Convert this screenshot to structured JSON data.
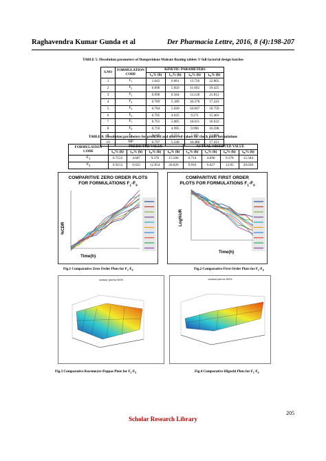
{
  "header": {
    "authors": "Raghavendra Kumar Gunda et al",
    "journal": "Der Pharmacia Lettre, 2016, 8 (4):198-207"
  },
  "table5": {
    "caption": "TABLE 5: Dissolution parameters of Domperidone Maleate floating  tablets 3² full factorial design batches",
    "h_sno": "S.NO",
    "h_code": "FORMULATION CODE",
    "h_kinetic": "KINETIC PARAMETERS",
    "sub": [
      "t₁₀% (h)",
      "t₂₅% (h)",
      "t₅₀% (h)",
      "t₉₀% (h)"
    ],
    "rows": [
      {
        "no": "1",
        "code": "F",
        "sub": "1",
        "v": [
          "1.042",
          "6.861",
          "13.726",
          "22.805"
        ]
      },
      {
        "no": "2",
        "code": "F",
        "sub": "2",
        "v": [
          "0.890",
          "5.850",
          "11.692",
          "19.425"
        ]
      },
      {
        "no": "3",
        "code": "F",
        "sub": "3",
        "v": [
          "0.998",
          "6.564",
          "13.128",
          "21.812"
        ]
      },
      {
        "no": "4",
        "code": "F",
        "sub": "4",
        "v": [
          "0.789",
          "5.189",
          "10.378",
          "17.243"
        ]
      },
      {
        "no": "5",
        "code": "F",
        "sub": "5",
        "v": [
          "0.784",
          "5.030",
          "10.067",
          "16.750"
        ]
      },
      {
        "no": "6",
        "code": "F",
        "sub": "6",
        "v": [
          "0.705",
          "4.635",
          "9.271",
          "15.403"
        ]
      },
      {
        "no": "7",
        "code": "F",
        "sub": "7",
        "v": [
          "0.761",
          "5.005",
          "10.011",
          "16.633"
        ]
      },
      {
        "no": "8",
        "code": "F",
        "sub": "8",
        "v": [
          "0.759",
          "4.995",
          "9.990",
          "16.598"
        ]
      },
      {
        "no": "9",
        "code": "F",
        "sub": "9",
        "v": [
          "0.540",
          "3.553",
          "7.105",
          "11.805"
        ]
      },
      {
        "no": "10",
        "code": "MP",
        "sub": "",
        "v": [
          "0.797",
          "5.240",
          "10.480",
          "17.413"
        ]
      }
    ]
  },
  "table6": {
    "caption": "TABLE 6: Dissolution parameters for predicted and observed values for check point formulations",
    "h_code": "FORMULATION CODE",
    "h_pred": "PREDICTED VALUE",
    "h_obs": "ACTUAL OBSERVED VALUE",
    "sub": [
      "t₁₀% (h)",
      "t₂₅% (h)",
      "t₅₀% (h)",
      "t₉₀% (h)",
      "t₁₀% (h)",
      "t₂₅% (h)",
      "t₅₀% (h)",
      "t₉₀% (h)"
    ],
    "rows": [
      {
        "code": "C",
        "sub": "1",
        "v": [
          "0.7122",
          "4.687",
          "9.378",
          "15.580",
          "0.714",
          "4.690",
          "9.378",
          "15.584"
        ]
      },
      {
        "code": "C",
        "sub": "2",
        "v": [
          "0.9153",
          "6.025",
          "12.054",
          "20.026",
          "0.916",
          "6.027",
          "12.05",
          "20.028"
        ]
      }
    ]
  },
  "chart1": {
    "title_line1": "COMPARITIVE ZERO ORDER PLOTS",
    "title_line2": "FOR FORMULATIONS F",
    "title_sub1": "1",
    "title_dash": "-F",
    "title_sub2": "9",
    "ylabel": "%CDR",
    "xlabel": "Time(h)"
  },
  "chart2": {
    "title_line1": "COMPARITIVE FIRST ORDER",
    "title_line2": "PLOTS FOR FORMULATIONS F",
    "title_sub1": "1",
    "title_dash": "-F",
    "title_sub2": "9",
    "ylabel": "Log%UR",
    "xlabel": "Time(h)"
  },
  "fig1": {
    "text": "Fig.1 Comparative Zero Order Plots for F",
    "s1": "1",
    "d": "-F",
    "s2": "9"
  },
  "fig2": {
    "text": "Fig.2 Comparative First Order Plots for F",
    "s1": "1",
    "d": "-F",
    "s2": "9"
  },
  "surf1": {
    "title": "contour plot for t50%"
  },
  "surf2": {
    "title": "contour plot for t90%"
  },
  "fig3": {
    "text": "Fig.3 Comparative Korsmeyer-Peppas Plots for F",
    "s1": "1",
    "d": "-F",
    "s2": "9"
  },
  "fig4": {
    "text": "Fig.4 Comparative Higuchi Plots for F",
    "s1": "1",
    "d": "-F",
    "s2": "9"
  },
  "page_number": "205",
  "footer": "Scholar Research Library",
  "colors": {
    "footer": "#c00000",
    "legend_box": "#e8e8e8"
  }
}
